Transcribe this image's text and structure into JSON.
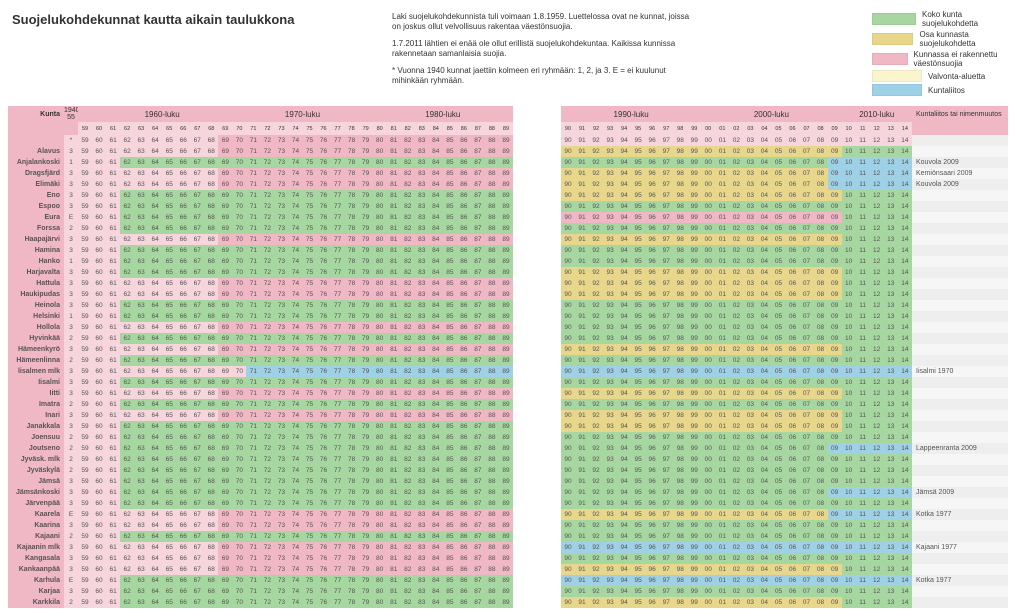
{
  "title": "Suojelukohdekunnat kautta aikain taulukkona",
  "notes": [
    "Laki suojelukohdekunnista tuli voimaan 1.8.1959. Luettelossa ovat ne kunnat, joissa on joskus ollut velvollisuus rakentaa väestönsuojia.",
    "1.7.2011 lähtien ei enää ole ollut erillistä suojelukohdekuntaa. Kaikissa kunnissa rakennetaan samanlaisia suojia.",
    "* Vuonna 1940 kunnat jaettiin kolmeen eri ryhmään: 1, 2, ja 3. E = ei kuulunut mihinkään ryhmään."
  ],
  "legend": [
    {
      "color": "#a7d7a0",
      "label": "Koko kunta suojelukohdetta"
    },
    {
      "color": "#e8d78b",
      "label": "Osa kunnasta suojelukohdetta"
    },
    {
      "color": "#f0b7c5",
      "label": "Kunnassa ei rakennettu väestönsuojia"
    },
    {
      "color": "#faf5cf",
      "label": "Valvonta-aluetta"
    },
    {
      "color": "#9ed0e6",
      "label": "Kuntaliitos"
    }
  ],
  "colors": {
    "green": "#a7d7a0",
    "yellow": "#e8d78b",
    "pink": "#f0b7c5",
    "pale": "#faf5cf",
    "blue": "#9ed0e6",
    "ltpink": "#f6d5dd",
    "white": "#ffffff"
  },
  "columns": {
    "kunta": "Kunta",
    "star": "1940–55",
    "decades": [
      "1960-luku",
      "1970-luku",
      "1980-luku",
      "1990-luku",
      "2000-luku",
      "2010-luku"
    ],
    "note": "Kuntaliitos tai nimenmuutos"
  },
  "years50": [
    59,
    60,
    61,
    62,
    63,
    64,
    65,
    66,
    67,
    68,
    69
  ],
  "years60": [
    70,
    71,
    72,
    73,
    74,
    75,
    76,
    77,
    78,
    79
  ],
  "years70": [
    80,
    81,
    82,
    83,
    84,
    85,
    86,
    87,
    88,
    89
  ],
  "yearsGap": [
    90,
    91,
    92,
    93,
    94,
    95,
    96,
    97,
    98,
    99,
    "00",
    "01",
    "02",
    "03",
    "04",
    "05",
    "06",
    "07",
    "08",
    "09",
    10,
    11,
    12,
    13,
    14
  ],
  "rows": [
    {
      "k": "",
      "s": "*",
      "p1": "p",
      "p2": "w",
      "p3": "w",
      "n": ""
    },
    {
      "k": "Alavus",
      "s": "3",
      "p1": "p",
      "p2": "y",
      "p3": "g",
      "n": ""
    },
    {
      "k": "Anjalankoski",
      "s": "1",
      "p1": "g",
      "p2": "g",
      "p3": "b",
      "n": "Kouvola 2009"
    },
    {
      "k": "Dragsfjärd",
      "s": "3",
      "p1": "p",
      "p2": "y",
      "p3": "b",
      "n": "Kemiönsaari 2009"
    },
    {
      "k": "Elimäki",
      "s": "3",
      "p1": "p",
      "p2": "y",
      "p3": "b",
      "n": "Kouvola 2009"
    },
    {
      "k": "Eno",
      "s": "3",
      "p1": "g",
      "p2": "y",
      "p3": "g",
      "n": ""
    },
    {
      "k": "Espoo",
      "s": "3",
      "p1": "g",
      "p2": "g",
      "p3": "g",
      "n": ""
    },
    {
      "k": "Eura",
      "s": "E",
      "p1": "g",
      "p2": "p",
      "p3": "g",
      "n": ""
    },
    {
      "k": "Forssa",
      "s": "2",
      "p1": "g",
      "p2": "g",
      "p3": "g",
      "n": ""
    },
    {
      "k": "Haapajärvi",
      "s": "3",
      "p1": "p",
      "p2": "y",
      "p3": "g",
      "n": ""
    },
    {
      "k": "Hamina",
      "s": "3",
      "p1": "g",
      "p2": "g",
      "p3": "g",
      "n": ""
    },
    {
      "k": "Hanko",
      "s": "1",
      "p1": "g",
      "p2": "g",
      "p3": "g",
      "n": ""
    },
    {
      "k": "Harjavalta",
      "s": "3",
      "p1": "g",
      "p2": "y",
      "p3": "g",
      "n": ""
    },
    {
      "k": "Hattula",
      "s": "3",
      "p1": "p",
      "p2": "y",
      "p3": "g",
      "n": ""
    },
    {
      "k": "Haukipudas",
      "s": "3",
      "p1": "p",
      "p2": "y",
      "p3": "g",
      "n": ""
    },
    {
      "k": "Heinola",
      "s": "3",
      "p1": "g",
      "p2": "g",
      "p3": "g",
      "n": ""
    },
    {
      "k": "Helsinki",
      "s": "1",
      "p1": "g",
      "p2": "g",
      "p3": "g",
      "n": ""
    },
    {
      "k": "Hollola",
      "s": "3",
      "p1": "p",
      "p2": "g",
      "p3": "g",
      "n": ""
    },
    {
      "k": "Hyvinkää",
      "s": "2",
      "p1": "g",
      "p2": "g",
      "p3": "g",
      "n": ""
    },
    {
      "k": "Hämeenkyrö",
      "s": "3",
      "p1": "p",
      "p2": "y",
      "p3": "g",
      "n": ""
    },
    {
      "k": "Hämeenlinna",
      "s": "2",
      "p1": "g",
      "p2": "g",
      "p3": "g",
      "n": ""
    },
    {
      "k": "lisalmen mlk",
      "s": "3",
      "p1": "b",
      "p2": "b",
      "p3": "b",
      "n": "Iisalmi 1970"
    },
    {
      "k": "Iisalmi",
      "s": "3",
      "p1": "g",
      "p2": "g",
      "p3": "g",
      "n": ""
    },
    {
      "k": "Iitti",
      "s": "3",
      "p1": "p",
      "p2": "y",
      "p3": "g",
      "n": ""
    },
    {
      "k": "Imatra",
      "s": "2",
      "p1": "g",
      "p2": "g",
      "p3": "g",
      "n": ""
    },
    {
      "k": "Inari",
      "s": "3",
      "p1": "p",
      "p2": "y",
      "p3": "g",
      "n": ""
    },
    {
      "k": "Janakkala",
      "s": "3",
      "p1": "g",
      "p2": "y",
      "p3": "g",
      "n": ""
    },
    {
      "k": "Joensuu",
      "s": "2",
      "p1": "g",
      "p2": "g",
      "p3": "g",
      "n": ""
    },
    {
      "k": "Joutseno",
      "s": "2",
      "p1": "g",
      "p2": "g",
      "p3": "b",
      "n": "Lappeenranta 2009"
    },
    {
      "k": "Jyväsk. mlk",
      "s": "2",
      "p1": "g",
      "p2": "g",
      "p3": "g",
      "n": ""
    },
    {
      "k": "Jyväskylä",
      "s": "2",
      "p1": "g",
      "p2": "g",
      "p3": "g",
      "n": ""
    },
    {
      "k": "Jämsä",
      "s": "3",
      "p1": "g",
      "p2": "g",
      "p3": "g",
      "n": ""
    },
    {
      "k": "Jämsänkoski",
      "s": "3",
      "p1": "g",
      "p2": "g",
      "p3": "b",
      "n": "Jämsä 2009"
    },
    {
      "k": "Järvenpää",
      "s": "3",
      "p1": "g",
      "p2": "g",
      "p3": "g",
      "n": ""
    },
    {
      "k": "Kaarela",
      "s": "E",
      "p1": "p",
      "p2": "y",
      "p3": "b",
      "n": "Kotka 1977"
    },
    {
      "k": "Kaarina",
      "s": "3",
      "p1": "p",
      "p2": "g",
      "p3": "g",
      "n": ""
    },
    {
      "k": "Kajaani",
      "s": "2",
      "p1": "g",
      "p2": "g",
      "p3": "g",
      "n": ""
    },
    {
      "k": "Kajaanin mlk",
      "s": "3",
      "p1": "p",
      "p2": "b",
      "p3": "b",
      "n": "Kajaani 1977"
    },
    {
      "k": "Kangasala",
      "s": "3",
      "p1": "p",
      "p2": "g",
      "p3": "g",
      "n": ""
    },
    {
      "k": "Kankaanpää",
      "s": "3",
      "p1": "p",
      "p2": "y",
      "p3": "g",
      "n": ""
    },
    {
      "k": "Karhula",
      "s": "E",
      "p1": "g",
      "p2": "b",
      "p3": "b",
      "n": "Kotka 1977"
    },
    {
      "k": "Karjaa",
      "s": "3",
      "p1": "g",
      "p2": "g",
      "p3": "g",
      "n": ""
    },
    {
      "k": "Karkkila",
      "s": "2",
      "p1": "g",
      "p2": "y",
      "p3": "g",
      "n": ""
    }
  ]
}
